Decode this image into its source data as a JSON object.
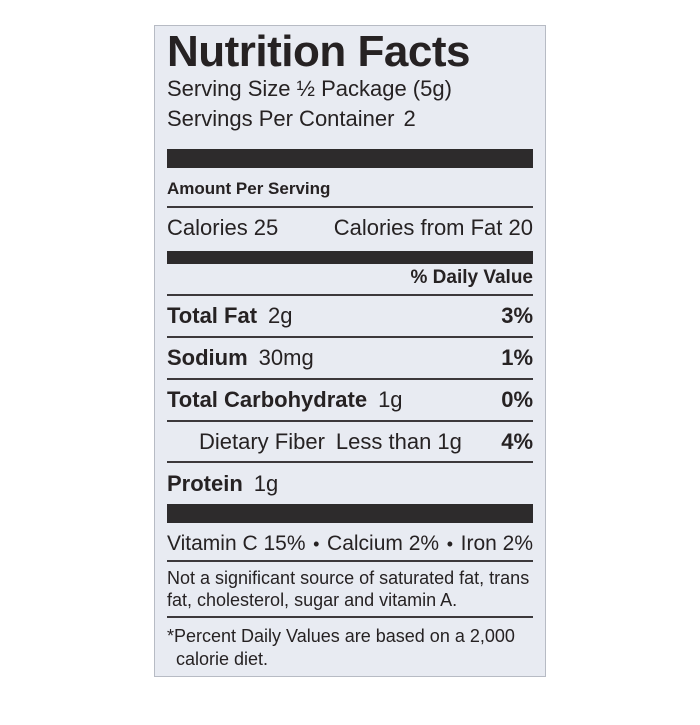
{
  "label": {
    "title": "Nutrition Facts",
    "serving_size": "Serving Size ½ Package (5g)",
    "servings_per_container_label": "Servings Per Container",
    "servings_per_container_value": "2",
    "amount_per_serving": "Amount Per Serving",
    "calories": "Calories 25",
    "calories_from_fat": "Calories from Fat 20",
    "daily_value_header": "% Daily Value",
    "rows": [
      {
        "name": "Total Fat",
        "amount": "2g",
        "dv": "3%"
      },
      {
        "name": "Sodium",
        "amount": "30mg",
        "dv": "1%"
      },
      {
        "name": "Total Carbohydrate",
        "amount": "1g",
        "dv": "0%"
      },
      {
        "name": "Dietary Fiber",
        "amount": "Less than 1g",
        "dv": "4%"
      },
      {
        "name": "Protein",
        "amount": "1g",
        "dv": ""
      }
    ],
    "micronutrients": [
      {
        "label": "Vitamin C 15%"
      },
      {
        "label": "Calcium 2%"
      },
      {
        "label": "Iron 2%"
      }
    ],
    "bullet": "•",
    "not_significant": "Not a significant source of saturated fat, trans fat, cholesterol, sugar and vitamin A.",
    "footnote": "*Percent Daily Values are based on a 2,000 calorie diet.",
    "colors": {
      "label_background": "#e8ebf2",
      "text": "#262223",
      "bar": "#2d2b2c",
      "rule": "#3c393b",
      "page_background": "#ffffff"
    }
  }
}
